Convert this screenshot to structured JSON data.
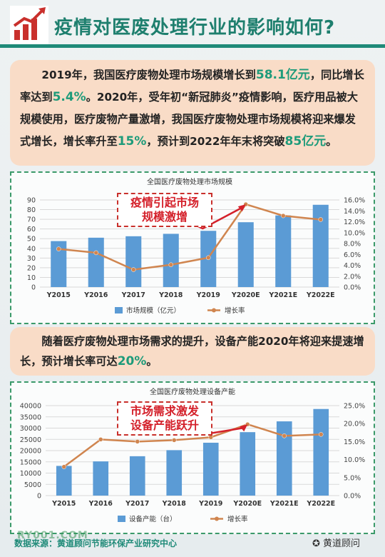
{
  "header": {
    "title": "疫情对医废处理行业的影响如何?"
  },
  "intro": {
    "parts": [
      "2019年，我国医疗废物处理市场规模增长到",
      "58.1亿元",
      "，同比增长率达到",
      "5.4%",
      "。2020年，受年初“新冠肺炎”疫情影响，医疗用品被大规模使用，医疗废物产量激增，我国医疗废物处理市场规模将迎来爆发式增长，增长率升至",
      "15%",
      "，预计到2022年年末将突破",
      "85亿元",
      "。"
    ]
  },
  "middle": {
    "parts": [
      "随着医疗废物处理市场需求的提升，设备产能2020年将迎来提速增长，预计增长率可达",
      "20%",
      "。"
    ]
  },
  "callouts": {
    "chart1": [
      "疫情引起市场",
      "规模激增"
    ],
    "chart2": [
      "市场需求激发",
      "设备产能跃升"
    ]
  },
  "footer": {
    "source": "数据来源：黄道顾问节能环保产业研究中心",
    "brand": "黄道顾问",
    "watermark": "RY001.COM"
  },
  "colors": {
    "bar": "#5b9bd5",
    "line": "#d0854f",
    "accent": "#1f8a78"
  },
  "chart_data": [
    {
      "type": "bar",
      "title": "全国医疗废物处理市场规模",
      "categories": [
        "Y2015",
        "Y2016",
        "Y2017",
        "Y2018",
        "Y2019",
        "Y2020E",
        "Y2021E",
        "Y2022E"
      ],
      "series": [
        {
          "name": "市场规模（亿元）",
          "type": "bar",
          "axis": "left",
          "values": [
            47.5,
            51,
            52.5,
            55,
            58.1,
            67,
            74,
            85
          ]
        },
        {
          "name": "增长率",
          "type": "line",
          "axis": "right",
          "values": [
            7.0,
            6.3,
            3.2,
            4.1,
            5.4,
            15.2,
            13.1,
            12.4
          ]
        }
      ],
      "yleft": {
        "min": 0,
        "max": 90,
        "step": 10,
        "ticks": [
          "0",
          "10",
          "20",
          "30",
          "40",
          "50",
          "60",
          "70",
          "80",
          "90"
        ]
      },
      "yright": {
        "min": 0,
        "max": 16,
        "step": 2,
        "ticks": [
          "0.0%",
          "2.0%",
          "4.0%",
          "6.0%",
          "8.0%",
          "10.0%",
          "12.0%",
          "14.0%",
          "16.0%"
        ]
      },
      "legend": "bottom"
    },
    {
      "type": "bar",
      "title": "全国医疗废物处理设备产能",
      "categories": [
        "Y2015",
        "Y2016",
        "Y2017",
        "Y2018",
        "Y2019",
        "Y2020E",
        "Y2021E",
        "Y2022E"
      ],
      "series": [
        {
          "name": "设备产能（台）",
          "type": "bar",
          "axis": "left",
          "values": [
            13200,
            15200,
            17500,
            20200,
            23500,
            28200,
            33000,
            38500
          ]
        },
        {
          "name": "增长率",
          "type": "line",
          "axis": "right",
          "values": [
            8.0,
            15.6,
            15.0,
            15.4,
            16.2,
            19.8,
            16.6,
            17.0
          ]
        }
      ],
      "yleft": {
        "min": 0,
        "max": 40000,
        "step": 5000,
        "ticks": [
          "0",
          "5000",
          "10000",
          "15000",
          "20000",
          "25000",
          "30000",
          "35000",
          "40000"
        ]
      },
      "yright": {
        "min": 0,
        "max": 25,
        "step": 5,
        "ticks": [
          "0.0%",
          "5.0%",
          "10.0%",
          "15.0%",
          "20.0%",
          "25.0%"
        ]
      },
      "legend": "bottom"
    }
  ]
}
